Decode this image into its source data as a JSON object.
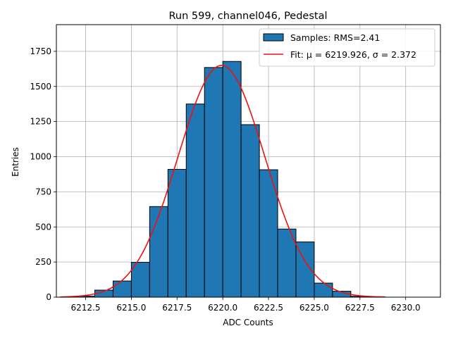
{
  "chart_data": {
    "type": "bar",
    "title": "Run 599, channel046, Pedestal",
    "xlabel": "ADC Counts",
    "ylabel": "Entries",
    "xlim": [
      6210.9,
      6231.9
    ],
    "ylim": [
      0,
      1940
    ],
    "x_ticks": [
      6212.5,
      6215.0,
      6217.5,
      6220.0,
      6222.5,
      6225.0,
      6227.5,
      6230.0
    ],
    "x_tick_labels": [
      "6212.5",
      "6215.0",
      "6217.5",
      "6220.0",
      "6222.5",
      "6225.0",
      "6227.5",
      "6230.0"
    ],
    "y_ticks": [
      0,
      250,
      500,
      750,
      1000,
      1250,
      1500,
      1750
    ],
    "y_tick_labels": [
      "0",
      "250",
      "500",
      "750",
      "1000",
      "1250",
      "1500",
      "1750"
    ],
    "grid": true,
    "legend_position": "top-right",
    "bin_width": 1,
    "bins": [
      {
        "left": 6212,
        "count": 7
      },
      {
        "left": 6213,
        "count": 50
      },
      {
        "left": 6214,
        "count": 115
      },
      {
        "left": 6215,
        "count": 248
      },
      {
        "left": 6216,
        "count": 645
      },
      {
        "left": 6217,
        "count": 910
      },
      {
        "left": 6218,
        "count": 1375
      },
      {
        "left": 6219,
        "count": 1635
      },
      {
        "left": 6220,
        "count": 1678
      },
      {
        "left": 6221,
        "count": 1228
      },
      {
        "left": 6222,
        "count": 907
      },
      {
        "left": 6223,
        "count": 485
      },
      {
        "left": 6224,
        "count": 393
      },
      {
        "left": 6225,
        "count": 100
      },
      {
        "left": 6226,
        "count": 42
      },
      {
        "left": 6227,
        "count": 6
      }
    ],
    "fit": {
      "mu": 6219.926,
      "sigma": 2.372,
      "amplitude": 1650,
      "x_range": [
        6211.1,
        6228.9
      ]
    },
    "series": [
      {
        "name": "Samples: RMS=2.41",
        "kind": "histogram",
        "color": "#1f77b4"
      },
      {
        "name": "Fit: μ = 6219.926, σ = 2.372",
        "kind": "line",
        "color": "#ee1111"
      }
    ]
  }
}
